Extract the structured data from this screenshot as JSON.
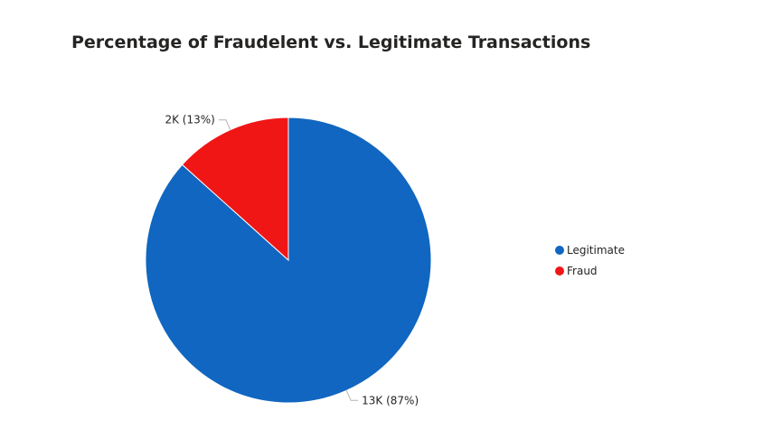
{
  "chart_data": {
    "type": "pie",
    "title": "Percentage of Fraudelent vs. Legitimate Transactions",
    "slices": [
      {
        "name": "Legitimate",
        "value": 13000,
        "percent": 87,
        "label": "13K (87%)",
        "color": "#1066C0"
      },
      {
        "name": "Fraud",
        "value": 2000,
        "percent": 13,
        "label": "2K (13%)",
        "color": "#F01616"
      }
    ],
    "legend": {
      "position": "right",
      "entries": [
        "Legitimate",
        "Fraud"
      ]
    }
  }
}
